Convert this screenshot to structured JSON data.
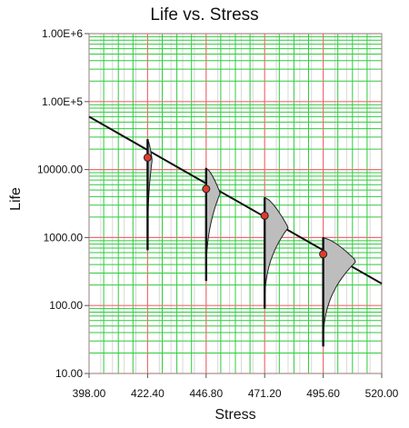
{
  "chart_data": {
    "type": "line",
    "title": "Life vs. Stress",
    "xlabel": "Stress",
    "ylabel": "Life",
    "xlim": [
      398.0,
      520.0
    ],
    "ylim": [
      10,
      1000000
    ],
    "y_scale": "log",
    "x_ticks": [
      398.0,
      422.4,
      446.8,
      471.2,
      495.6,
      520.0
    ],
    "x_tick_labels": [
      "398.00",
      "422.40",
      "446.80",
      "471.20",
      "495.60",
      "520.00"
    ],
    "y_ticks": [
      10,
      100,
      1000,
      10000,
      100000,
      1000000
    ],
    "y_tick_labels": [
      "10.00",
      "100.00",
      "1000.00",
      "10000.00",
      "1.00E+5",
      "1.00E+6"
    ],
    "grid": true,
    "fit_line": {
      "x": [
        398.0,
        520.0
      ],
      "y": [
        60000,
        210
      ]
    },
    "points": [
      {
        "x": 422.4,
        "y": 15000,
        "dist_min": 650,
        "dist_max": 28000,
        "dist_peak": 14000
      },
      {
        "x": 446.8,
        "y": 5200,
        "dist_min": 230,
        "dist_max": 10500,
        "dist_peak": 4500
      },
      {
        "x": 471.2,
        "y": 2100,
        "dist_min": 90,
        "dist_max": 3900,
        "dist_peak": 1400
      },
      {
        "x": 495.6,
        "y": 570,
        "dist_min": 25,
        "dist_max": 1000,
        "dist_peak": 450
      }
    ]
  },
  "colors": {
    "major_grid": "#ee6e6e",
    "minor_grid": "#2dcc3c",
    "faint_grid": "#d8d8d8",
    "fit_line": "#111111",
    "point_fill": "#e23b2e",
    "distribution_fill": "#bdbdbd",
    "distribution_stroke": "#222222"
  }
}
